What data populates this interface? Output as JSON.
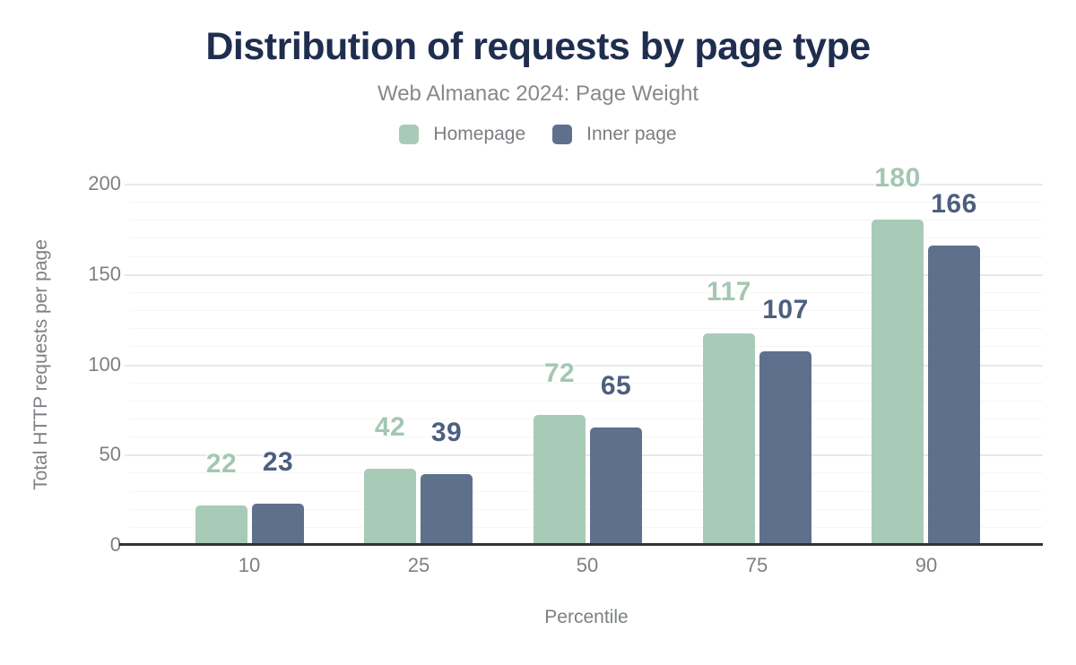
{
  "header": {
    "title": "Distribution of requests by page type",
    "subtitle": "Web Almanac 2024: Page Weight"
  },
  "chart_data": {
    "type": "bar",
    "title": "Distribution of requests by page type",
    "subtitle": "Web Almanac 2024: Page Weight",
    "categories": [
      "10",
      "25",
      "50",
      "75",
      "90"
    ],
    "series": [
      {
        "name": "Homepage",
        "values": [
          22,
          42,
          72,
          117,
          180
        ],
        "color": "#a8cbb7",
        "label_color": "#a3c7b2"
      },
      {
        "name": "Inner page",
        "values": [
          23,
          39,
          65,
          107,
          166
        ],
        "color": "#5f708c",
        "label_color": "#4d5f80"
      }
    ],
    "xlabel": "Percentile",
    "ylabel": "Total HTTP requests per page",
    "ylim": [
      0,
      200
    ],
    "y_ticks": [
      "0",
      "50",
      "100",
      "150",
      "200"
    ],
    "y_major_step": 50,
    "y_minor_step": 10,
    "grid": "horizontal",
    "legend_position": "top-center",
    "colors": {
      "title_text": "#1f2e4f",
      "subtitle_text": "#85898c",
      "tick_text": "#7c8084",
      "legend_text": "#7a7e81",
      "axis_line": "#313335",
      "grid_major": "#e8e9ea",
      "grid_minor": "#f5f6f6",
      "background": "#ffffff"
    }
  }
}
